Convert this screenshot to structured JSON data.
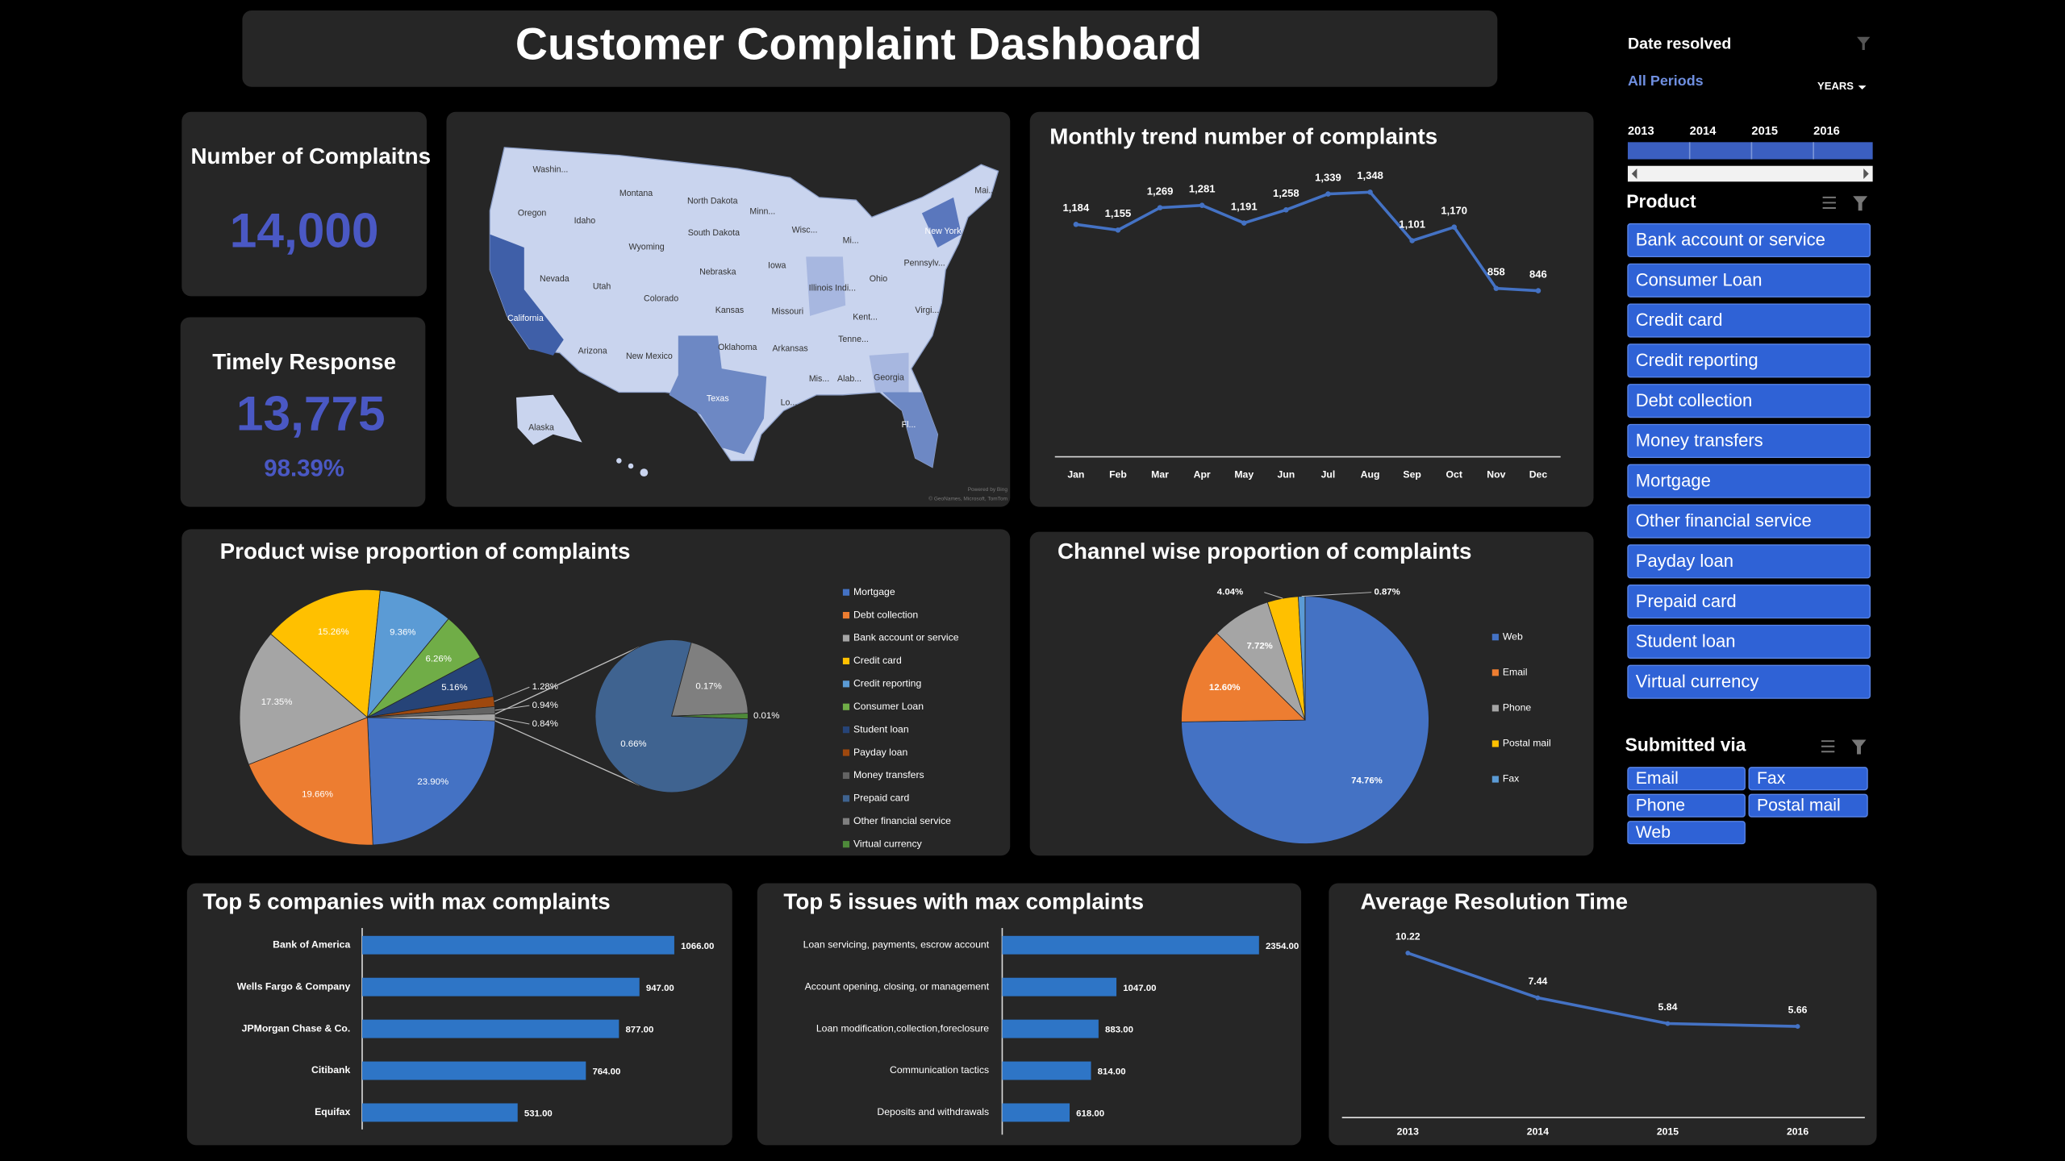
{
  "header": {
    "title": "Customer Complaint Dashboard"
  },
  "kpis": [
    {
      "label": "Number of Complaitns",
      "value": "14,000"
    },
    {
      "label": "Timely Response",
      "value": "13,775",
      "sub": "98.39%"
    }
  ],
  "map": {
    "labels": [
      "Washin...",
      "Montana",
      "North Dakota",
      "Minn...",
      "Oregon",
      "Idaho",
      "South Dakota",
      "Wisc...",
      "Mi...",
      "Wyoming",
      "Nebraska",
      "Iowa",
      "Ohio",
      "Pennsylv...",
      "New York",
      "Mai...",
      "Nevada",
      "Utah",
      "Colorado",
      "Kansas",
      "Missouri",
      "Illinois Indi...",
      "Virgi...",
      "California",
      "Arizona",
      "New Mexico",
      "Oklahoma",
      "Arkansas",
      "Kent...",
      "Tenne...",
      "Texas",
      "Mis...",
      "Alab...",
      "Georgia",
      "Lo...",
      "Fl...",
      "Alaska"
    ],
    "attribution": [
      "Powered by Bing",
      "© GeoNames, Microsoft, TomTom"
    ]
  },
  "chart_data": [
    {
      "type": "line",
      "title": "Monthly trend number of complaints",
      "categories": [
        "Jan",
        "Feb",
        "Mar",
        "Apr",
        "May",
        "Jun",
        "Jul",
        "Aug",
        "Sep",
        "Oct",
        "Nov",
        "Dec"
      ],
      "values": [
        1184,
        1155,
        1269,
        1281,
        1191,
        1258,
        1339,
        1348,
        1101,
        1170,
        858,
        846
      ],
      "value_labels": [
        "1,184",
        "1,155",
        "1,269",
        "1,281",
        "1,191",
        "1,258",
        "1,339",
        "1,348",
        "1,101",
        "1,170",
        "858",
        "846"
      ],
      "color": "#4472c4"
    },
    {
      "type": "pie-of-pie",
      "title": "Product wise proportion of complaints",
      "categories": [
        "Mortgage",
        "Debt collection",
        "Bank account or service",
        "Credit card",
        "Credit reporting",
        "Consumer Loan",
        "Student loan",
        "Payday loan",
        "Money transfers",
        "Prepaid card",
        "Other financial service",
        "Virtual currency"
      ],
      "values": [
        23.9,
        19.66,
        17.35,
        15.26,
        9.36,
        6.26,
        5.16,
        1.28,
        0.94,
        0.66,
        0.17,
        0.01
      ],
      "value_labels": [
        "23.90%",
        "19.66%",
        "17.35%",
        "15.26%",
        "9.36%",
        "6.26%",
        "5.16%",
        "1.28%",
        "0.94%",
        "0.66%",
        "0.17%",
        "0.01%"
      ],
      "colors": [
        "#4472c4",
        "#ed7d31",
        "#a5a5a5",
        "#ffc000",
        "#5b9bd5",
        "#70ad47",
        "#264478",
        "#9e480e",
        "#636363",
        "#3f6390",
        "#7f7f7f",
        "#4e8a3a"
      ],
      "split_last": 3,
      "split_total": 0.84,
      "split_total_label": "0.84%"
    },
    {
      "type": "pie",
      "title": "Channel wise proportion of complaints",
      "categories": [
        "Web",
        "Email",
        "Phone",
        "Postal mail",
        "Fax"
      ],
      "values": [
        74.76,
        12.6,
        7.72,
        4.04,
        0.87
      ],
      "value_labels": [
        "74.76%",
        "12.60%",
        "7.72%",
        "4.04%",
        "0.87%"
      ],
      "colors": [
        "#4472c4",
        "#ed7d31",
        "#a5a5a5",
        "#ffc000",
        "#5b9bd5"
      ]
    },
    {
      "type": "hbar",
      "title": "Top 5 companies with max complaints",
      "categories": [
        "Bank of America",
        "Wells Fargo & Company",
        "JPMorgan Chase & Co.",
        "Citibank",
        "Equifax"
      ],
      "values": [
        1066,
        947,
        877,
        764,
        531
      ],
      "value_labels": [
        "1066.00",
        "947.00",
        "877.00",
        "764.00",
        "531.00"
      ],
      "color": "#2e75c6"
    },
    {
      "type": "hbar",
      "title": "Top 5 issues with max complaints",
      "categories": [
        "Loan servicing, payments, escrow account",
        "Account opening, closing, or management",
        "Loan modification,collection,foreclosure",
        "Communication tactics",
        "Deposits and withdrawals"
      ],
      "values": [
        2354,
        1047,
        883,
        814,
        618
      ],
      "value_labels": [
        "2354.00",
        "1047.00",
        "883.00",
        "814.00",
        "618.00"
      ],
      "color": "#2e75c6"
    },
    {
      "type": "line",
      "title": "Average Resolution Time",
      "categories": [
        "2013",
        "2014",
        "2015",
        "2016"
      ],
      "values": [
        10.22,
        7.44,
        5.84,
        5.66
      ],
      "color": "#4472c4"
    }
  ],
  "slicers": {
    "date": {
      "title": "Date resolved",
      "period": "All Periods",
      "unit": "YEARS",
      "years": [
        "2013",
        "2014",
        "2015",
        "2016"
      ]
    },
    "product": {
      "title": "Product",
      "items": [
        "Bank account or service",
        "Consumer Loan",
        "Credit card",
        "Credit reporting",
        "Debt collection",
        "Money transfers",
        "Mortgage",
        "Other financial service",
        "Payday loan",
        "Prepaid card",
        "Student loan",
        "Virtual currency"
      ]
    },
    "channel": {
      "title": "Submitted via",
      "items": [
        "Email",
        "Fax",
        "Phone",
        "Postal mail",
        "Web"
      ]
    }
  }
}
